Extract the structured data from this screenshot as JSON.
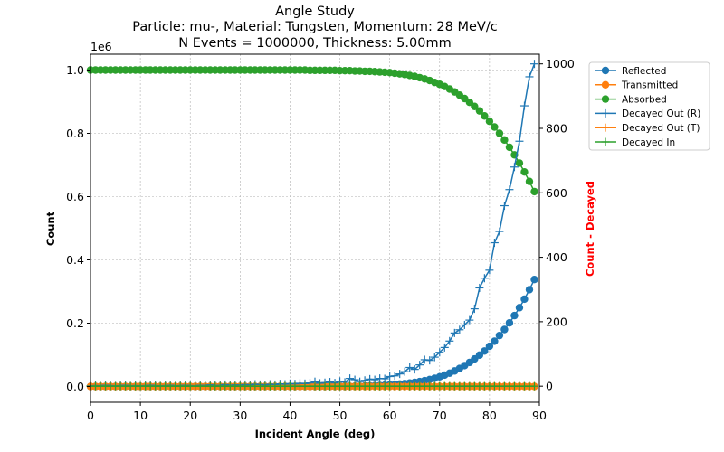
{
  "chart_data": {
    "type": "line",
    "title_lines": [
      "Angle Study",
      "Particle: mu-, Material: Tungsten, Momentum: 28 MeV/c",
      "N Events = 1000000, Thickness: 5.00mm"
    ],
    "xlabel": "Incident Angle (deg)",
    "ylabel": "Count",
    "ylabel_right": "Count - Decayed",
    "ylabel_right_color": "#ff0000",
    "y_offset_text": "1e6",
    "xlim": [
      0,
      90
    ],
    "ylim": [
      -50000,
      1050000
    ],
    "ylim_right": [
      -50,
      1030
    ],
    "x_ticks": [
      0,
      10,
      20,
      30,
      40,
      50,
      60,
      70,
      80,
      90
    ],
    "y_ticks": [
      0.0,
      0.2,
      0.4,
      0.6,
      0.8,
      1.0
    ],
    "y_ticks_right": [
      0,
      200,
      400,
      600,
      800,
      1000
    ],
    "grid": true,
    "legend_position": "outside-right-top",
    "x": [
      0,
      1,
      2,
      3,
      4,
      5,
      6,
      7,
      8,
      9,
      10,
      11,
      12,
      13,
      14,
      15,
      16,
      17,
      18,
      19,
      20,
      21,
      22,
      23,
      24,
      25,
      26,
      27,
      28,
      29,
      30,
      31,
      32,
      33,
      34,
      35,
      36,
      37,
      38,
      39,
      40,
      41,
      42,
      43,
      44,
      45,
      46,
      47,
      48,
      49,
      50,
      51,
      52,
      53,
      54,
      55,
      56,
      57,
      58,
      59,
      60,
      61,
      62,
      63,
      64,
      65,
      66,
      67,
      68,
      69,
      70,
      71,
      72,
      73,
      74,
      75,
      76,
      77,
      78,
      79,
      80,
      81,
      82,
      83,
      84,
      85,
      86,
      87,
      88,
      89
    ],
    "series": [
      {
        "name": "Reflected",
        "axis": "left",
        "color": "#1f77b4",
        "marker": "circle",
        "values": [
          0,
          0,
          0,
          0,
          0,
          0,
          0,
          0,
          0,
          0,
          0,
          0,
          0,
          0,
          0,
          0,
          0,
          0,
          0,
          0,
          0,
          0,
          0,
          0,
          0,
          0,
          0,
          0,
          0,
          0,
          0,
          0,
          0,
          0,
          0,
          0,
          0,
          0,
          0,
          0,
          0,
          0,
          0,
          0,
          0,
          0,
          0,
          0,
          0,
          0,
          0,
          0,
          0,
          1000,
          1000,
          1500,
          2000,
          2500,
          3000,
          4000,
          5000,
          6000,
          7500,
          9000,
          11000,
          13000,
          15500,
          18500,
          22000,
          26000,
          30500,
          36000,
          42000,
          49000,
          57000,
          66000,
          76000,
          87000,
          99000,
          112000,
          127000,
          143000,
          161000,
          180000,
          201000,
          224000,
          249000,
          276000,
          306000,
          338000
        ]
      },
      {
        "name": "Transmitted",
        "axis": "left",
        "color": "#ff7f0e",
        "marker": "circle",
        "values": [
          0,
          0,
          0,
          0,
          0,
          0,
          0,
          0,
          0,
          0,
          0,
          0,
          0,
          0,
          0,
          0,
          0,
          0,
          0,
          0,
          0,
          0,
          0,
          0,
          0,
          0,
          0,
          0,
          0,
          0,
          0,
          0,
          0,
          0,
          0,
          0,
          0,
          0,
          0,
          0,
          0,
          0,
          0,
          0,
          0,
          0,
          0,
          0,
          0,
          0,
          0,
          0,
          0,
          0,
          0,
          0,
          0,
          0,
          0,
          0,
          0,
          0,
          0,
          0,
          0,
          0,
          0,
          0,
          0,
          0,
          0,
          0,
          0,
          0,
          0,
          0,
          0,
          0,
          0,
          0,
          0,
          0,
          0,
          0,
          0,
          0,
          0,
          0,
          0,
          0
        ]
      },
      {
        "name": "Absorbed",
        "axis": "left",
        "color": "#2ca02c",
        "marker": "circle",
        "values": [
          1000000,
          1000000,
          1000000,
          1000000,
          1000000,
          1000000,
          1000000,
          1000000,
          1000000,
          1000000,
          1000000,
          1000000,
          1000000,
          1000000,
          1000000,
          1000000,
          1000000,
          1000000,
          1000000,
          1000000,
          1000000,
          1000000,
          1000000,
          1000000,
          1000000,
          1000000,
          1000000,
          1000000,
          1000000,
          1000000,
          1000000,
          1000000,
          1000000,
          1000000,
          1000000,
          1000000,
          1000000,
          1000000,
          1000000,
          1000000,
          1000000,
          1000000,
          1000000,
          1000000,
          999000,
          999000,
          999000,
          999000,
          999000,
          999000,
          998000,
          998000,
          998000,
          997000,
          997000,
          996000,
          996000,
          995000,
          994000,
          993000,
          992000,
          990000,
          988000,
          986000,
          983000,
          980000,
          976000,
          972000,
          967000,
          961000,
          955000,
          948000,
          940000,
          931000,
          921000,
          910000,
          898000,
          885000,
          871000,
          855000,
          838000,
          820000,
          800000,
          779000,
          756000,
          732000,
          706000,
          678000,
          648000,
          616000
        ]
      },
      {
        "name": "Decayed Out (R)",
        "axis": "right",
        "color": "#1f77b4",
        "marker": "plus",
        "values": [
          1,
          2,
          1,
          3,
          2,
          1,
          2,
          3,
          1,
          2,
          1,
          2,
          3,
          2,
          1,
          2,
          3,
          1,
          2,
          3,
          2,
          1,
          3,
          2,
          4,
          2,
          3,
          5,
          2,
          4,
          3,
          5,
          4,
          6,
          5,
          4,
          6,
          5,
          7,
          6,
          8,
          7,
          9,
          8,
          10,
          14,
          9,
          11,
          13,
          10,
          15,
          12,
          24,
          20,
          14,
          18,
          22,
          20,
          24,
          23,
          30,
          32,
          38,
          45,
          58,
          52,
          66,
          82,
          80,
          90,
          105,
          120,
          140,
          165,
          175,
          190,
          205,
          240,
          305,
          335,
          360,
          445,
          480,
          560,
          610,
          680,
          760,
          870,
          960,
          1000
        ]
      },
      {
        "name": "Decayed Out (T)",
        "axis": "right",
        "color": "#ff7f0e",
        "marker": "plus",
        "values": [
          0,
          0,
          0,
          0,
          0,
          0,
          0,
          0,
          0,
          0,
          0,
          0,
          0,
          0,
          0,
          0,
          0,
          0,
          0,
          0,
          0,
          0,
          0,
          0,
          0,
          0,
          0,
          0,
          0,
          0,
          0,
          0,
          0,
          0,
          0,
          0,
          0,
          0,
          0,
          0,
          0,
          0,
          0,
          0,
          0,
          0,
          0,
          0,
          0,
          0,
          0,
          0,
          0,
          0,
          0,
          0,
          0,
          0,
          0,
          0,
          0,
          0,
          0,
          0,
          0,
          0,
          0,
          0,
          0,
          0,
          0,
          0,
          0,
          0,
          0,
          0,
          0,
          0,
          0,
          0,
          0,
          0,
          0,
          0,
          0,
          0,
          0,
          0,
          0,
          0
        ]
      },
      {
        "name": "Decayed In",
        "axis": "right",
        "color": "#2ca02c",
        "marker": "plus",
        "values": [
          0,
          0,
          0,
          0,
          0,
          0,
          0,
          0,
          0,
          0,
          0,
          0,
          0,
          0,
          0,
          0,
          0,
          0,
          0,
          0,
          0,
          0,
          0,
          0,
          0,
          0,
          0,
          0,
          0,
          0,
          0,
          0,
          0,
          0,
          0,
          0,
          0,
          0,
          0,
          0,
          0,
          0,
          0,
          0,
          0,
          0,
          0,
          0,
          0,
          0,
          0,
          0,
          0,
          0,
          0,
          0,
          0,
          0,
          0,
          0,
          0,
          0,
          0,
          0,
          0,
          0,
          0,
          0,
          0,
          0,
          0,
          0,
          0,
          0,
          0,
          0,
          0,
          0,
          0,
          0,
          0,
          0,
          0,
          0,
          0,
          0,
          0,
          0,
          0,
          0
        ]
      }
    ]
  }
}
